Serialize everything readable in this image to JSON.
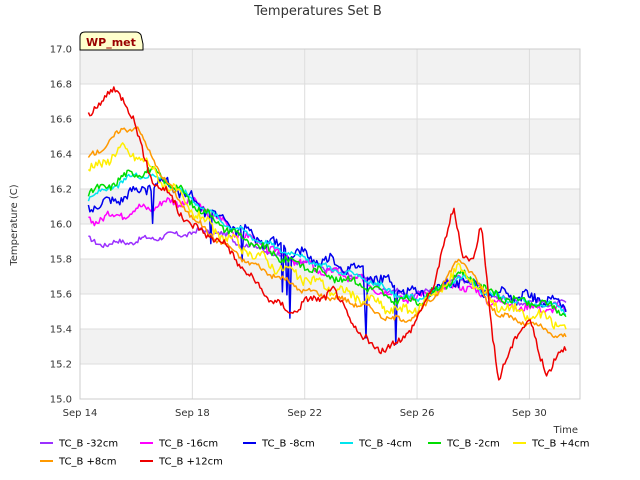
{
  "chart_data": {
    "type": "line",
    "title": "Temperatures Set B",
    "badge": "WP_met",
    "xlabel": "Time",
    "ylabel": "Temperature (C)",
    "xlim_days": [
      14,
      31.8
    ],
    "ylim": [
      15.0,
      17.0
    ],
    "yticks": [
      "15.0",
      "15.2",
      "15.4",
      "15.6",
      "15.8",
      "16.0",
      "16.2",
      "16.4",
      "16.6",
      "16.8",
      "17.0"
    ],
    "xticks": [
      {
        "day": 14,
        "label": "Sep 14"
      },
      {
        "day": 18,
        "label": "Sep 18"
      },
      {
        "day": 22,
        "label": "Sep 22"
      },
      {
        "day": 26,
        "label": "Sep 26"
      },
      {
        "day": 30,
        "label": "Sep 30"
      }
    ],
    "grid": true,
    "banded_background": true,
    "legend_position": "bottom",
    "series": [
      {
        "name": "TC_B -32cm",
        "color": "#9b30ff",
        "x": [
          14.3,
          15.0,
          15.5,
          16.0,
          16.5,
          17.0,
          17.5,
          18.0,
          18.5,
          19.0,
          19.5,
          20.0,
          20.5,
          21.0,
          21.5,
          22.0,
          22.5,
          23.0,
          23.5,
          24.0,
          24.5,
          25.0,
          25.5,
          26.0,
          26.5,
          27.0,
          27.5,
          28.0,
          28.5,
          29.0,
          29.5,
          30.0,
          30.5,
          31.0,
          31.3
        ],
        "y": [
          15.91,
          15.88,
          15.9,
          15.9,
          15.92,
          15.93,
          15.94,
          15.95,
          15.96,
          15.95,
          15.9,
          15.88,
          15.85,
          15.83,
          15.8,
          15.78,
          15.76,
          15.74,
          15.72,
          15.7,
          15.66,
          15.62,
          15.6,
          15.6,
          15.62,
          15.65,
          15.7,
          15.66,
          15.6,
          15.58,
          15.56,
          15.56,
          15.55,
          15.55,
          15.54
        ]
      },
      {
        "name": "TC_B -16cm",
        "color": "#ff00ff",
        "x": [
          14.3,
          15.0,
          15.5,
          16.0,
          16.5,
          17.0,
          17.5,
          18.0,
          18.5,
          19.0,
          19.5,
          20.0,
          20.5,
          21.0,
          21.5,
          22.0,
          22.5,
          23.0,
          23.5,
          24.0,
          24.5,
          25.0,
          25.5,
          26.0,
          26.5,
          27.0,
          27.5,
          28.0,
          28.5,
          29.0,
          29.5,
          30.0,
          30.5,
          31.0,
          31.3
        ],
        "y": [
          16.02,
          16.04,
          16.06,
          16.08,
          16.1,
          16.12,
          16.13,
          16.12,
          16.08,
          16.02,
          15.96,
          15.92,
          15.88,
          15.84,
          15.8,
          15.77,
          15.74,
          15.72,
          15.7,
          15.68,
          15.64,
          15.6,
          15.58,
          15.58,
          15.6,
          15.63,
          15.66,
          15.62,
          15.57,
          15.55,
          15.53,
          15.52,
          15.52,
          15.51,
          15.5
        ]
      },
      {
        "name": "TC_B -8cm",
        "color": "#0000ee",
        "x": [
          14.3,
          15.0,
          15.5,
          16.0,
          16.5,
          17.0,
          17.5,
          18.0,
          18.5,
          19.0,
          19.5,
          20.0,
          20.5,
          21.0,
          21.5,
          22.0,
          22.5,
          23.0,
          23.5,
          24.0,
          24.5,
          25.0,
          25.5,
          26.0,
          26.5,
          27.0,
          27.5,
          28.0,
          28.5,
          29.0,
          29.5,
          30.0,
          30.5,
          31.0,
          31.3
        ],
        "y": [
          16.1,
          16.12,
          16.16,
          16.18,
          16.22,
          16.24,
          16.2,
          16.14,
          16.08,
          16.02,
          15.98,
          15.94,
          15.9,
          15.88,
          15.85,
          15.82,
          15.8,
          15.78,
          15.76,
          15.74,
          15.7,
          15.66,
          15.62,
          15.6,
          15.62,
          15.65,
          15.68,
          15.66,
          15.62,
          15.6,
          15.58,
          15.58,
          15.57,
          15.56,
          15.52
        ]
      },
      {
        "name": "TC_B -4cm",
        "color": "#00e5ee",
        "x": [
          14.3,
          15.0,
          15.5,
          16.0,
          16.5,
          17.0,
          17.5,
          18.0,
          18.5,
          19.0,
          19.5,
          20.0,
          20.5,
          21.0,
          21.5,
          22.0,
          22.5,
          23.0,
          23.5,
          24.0,
          24.5,
          25.0,
          25.5,
          26.0,
          26.5,
          27.0,
          27.5,
          28.0,
          28.5,
          29.0,
          29.5,
          30.0,
          30.5,
          31.0,
          31.3
        ],
        "y": [
          16.15,
          16.2,
          16.24,
          16.28,
          16.28,
          16.25,
          16.2,
          16.14,
          16.08,
          16.02,
          15.98,
          15.94,
          15.9,
          15.86,
          15.84,
          15.8,
          15.77,
          15.74,
          15.72,
          15.7,
          15.66,
          15.62,
          15.58,
          15.57,
          15.6,
          15.64,
          15.7,
          15.66,
          15.6,
          15.58,
          15.56,
          15.55,
          15.54,
          15.53,
          15.5
        ]
      },
      {
        "name": "TC_B -2cm",
        "color": "#00dd00",
        "x": [
          14.3,
          15.0,
          15.5,
          16.0,
          16.5,
          17.0,
          17.5,
          18.0,
          18.5,
          19.0,
          19.5,
          20.0,
          20.5,
          21.0,
          21.5,
          22.0,
          22.5,
          23.0,
          23.5,
          24.0,
          24.5,
          25.0,
          25.5,
          26.0,
          26.5,
          27.0,
          27.5,
          28.0,
          28.5,
          29.0,
          29.5,
          30.0,
          30.5,
          31.0,
          31.3
        ],
        "y": [
          16.17,
          16.22,
          16.26,
          16.3,
          16.3,
          16.26,
          16.2,
          16.12,
          16.06,
          16.0,
          15.95,
          15.9,
          15.86,
          15.82,
          15.79,
          15.76,
          15.73,
          15.7,
          15.68,
          15.66,
          15.62,
          15.58,
          15.56,
          15.56,
          15.6,
          15.65,
          15.72,
          15.68,
          15.62,
          15.58,
          15.56,
          15.55,
          15.54,
          15.52,
          15.48
        ]
      },
      {
        "name": "TC_B +4cm",
        "color": "#ffee00",
        "x": [
          14.3,
          15.0,
          15.5,
          16.0,
          16.5,
          17.0,
          17.5,
          18.0,
          18.5,
          19.0,
          19.5,
          20.0,
          20.5,
          21.0,
          21.5,
          22.0,
          22.5,
          23.0,
          23.5,
          24.0,
          24.5,
          25.0,
          25.5,
          26.0,
          26.5,
          27.0,
          27.5,
          28.0,
          28.5,
          29.0,
          29.5,
          30.0,
          30.5,
          31.0,
          31.3
        ],
        "y": [
          16.3,
          16.38,
          16.42,
          16.4,
          16.32,
          16.24,
          16.16,
          16.08,
          16.0,
          15.94,
          15.89,
          15.84,
          15.8,
          15.76,
          15.72,
          15.69,
          15.66,
          15.63,
          15.6,
          15.58,
          15.55,
          15.52,
          15.5,
          15.52,
          15.58,
          15.66,
          15.74,
          15.68,
          15.58,
          15.53,
          15.5,
          15.48,
          15.46,
          15.44,
          15.4
        ]
      },
      {
        "name": "TC_B +8cm",
        "color": "#ff9900",
        "x": [
          14.3,
          15.0,
          15.5,
          16.0,
          16.5,
          17.0,
          17.5,
          18.0,
          18.5,
          19.0,
          19.5,
          20.0,
          20.5,
          21.0,
          21.5,
          22.0,
          22.5,
          23.0,
          23.5,
          24.0,
          24.5,
          25.0,
          25.5,
          26.0,
          26.5,
          27.0,
          27.5,
          28.0,
          28.5,
          29.0,
          29.5,
          30.0,
          30.5,
          31.0,
          31.3
        ],
        "y": [
          16.38,
          16.46,
          16.54,
          16.56,
          16.4,
          16.26,
          16.14,
          16.04,
          15.96,
          15.9,
          15.84,
          15.78,
          15.74,
          15.7,
          15.66,
          15.62,
          15.6,
          15.58,
          15.56,
          15.54,
          15.5,
          15.46,
          15.45,
          15.48,
          15.56,
          15.68,
          15.8,
          15.72,
          15.55,
          15.48,
          15.45,
          15.43,
          15.4,
          15.36,
          15.35
        ]
      },
      {
        "name": "TC_B +12cm",
        "color": "#ee0000",
        "x": [
          14.3,
          14.6,
          15.0,
          15.3,
          15.6,
          15.9,
          16.2,
          16.5,
          16.8,
          17.2,
          17.6,
          18.0,
          18.5,
          19.0,
          19.5,
          20.0,
          20.5,
          21.0,
          21.5,
          22.0,
          22.5,
          23.0,
          23.5,
          24.0,
          24.5,
          25.0,
          25.5,
          26.0,
          26.5,
          27.0,
          27.3,
          27.6,
          28.0,
          28.3,
          28.6,
          28.9,
          29.2,
          29.6,
          30.0,
          30.3,
          30.6,
          31.0,
          31.3
        ],
        "y": [
          16.62,
          16.68,
          16.74,
          16.75,
          16.72,
          16.6,
          16.42,
          16.28,
          16.22,
          16.16,
          16.06,
          15.98,
          15.95,
          15.9,
          15.82,
          15.7,
          15.62,
          15.54,
          15.5,
          15.55,
          15.58,
          15.62,
          15.5,
          15.35,
          15.3,
          15.28,
          15.36,
          15.45,
          15.62,
          15.9,
          16.08,
          15.85,
          15.78,
          16.0,
          15.5,
          15.1,
          15.22,
          15.4,
          15.45,
          15.28,
          15.15,
          15.25,
          15.28
        ]
      }
    ]
  }
}
